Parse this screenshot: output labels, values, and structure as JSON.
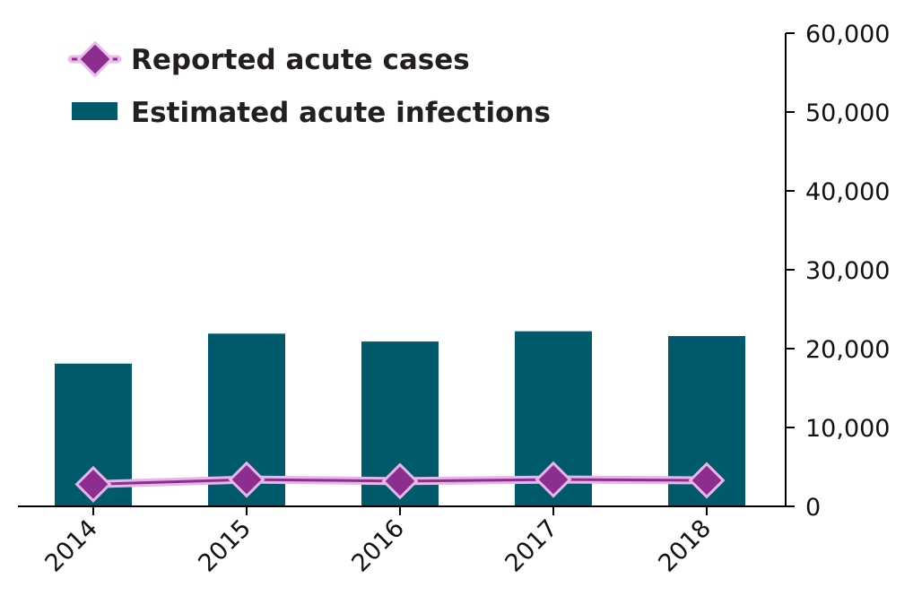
{
  "chart_data": {
    "type": "bar",
    "categories": [
      "2014",
      "2015",
      "2016",
      "2017",
      "2018"
    ],
    "series": [
      {
        "name": "Estimated acute infections",
        "kind": "bar",
        "color": "#005a6b",
        "values": [
          18100,
          21900,
          20900,
          22200,
          21600
        ]
      },
      {
        "name": "Reported acute cases",
        "kind": "line",
        "marker": "diamond",
        "color": "#8b2e8f",
        "line_color": "#e8b5e8",
        "values": [
          2800,
          3400,
          3200,
          3400,
          3300
        ]
      }
    ],
    "y_axis": {
      "position": "right",
      "ylim": [
        0,
        60000
      ],
      "ticks": [
        "0",
        "10,000",
        "20,000",
        "30,000",
        "40,000",
        "50,000",
        "60,000"
      ]
    },
    "title": "",
    "xlabel": "",
    "ylabel": "",
    "grid": false,
    "legend": {
      "placement": "top-left"
    }
  }
}
